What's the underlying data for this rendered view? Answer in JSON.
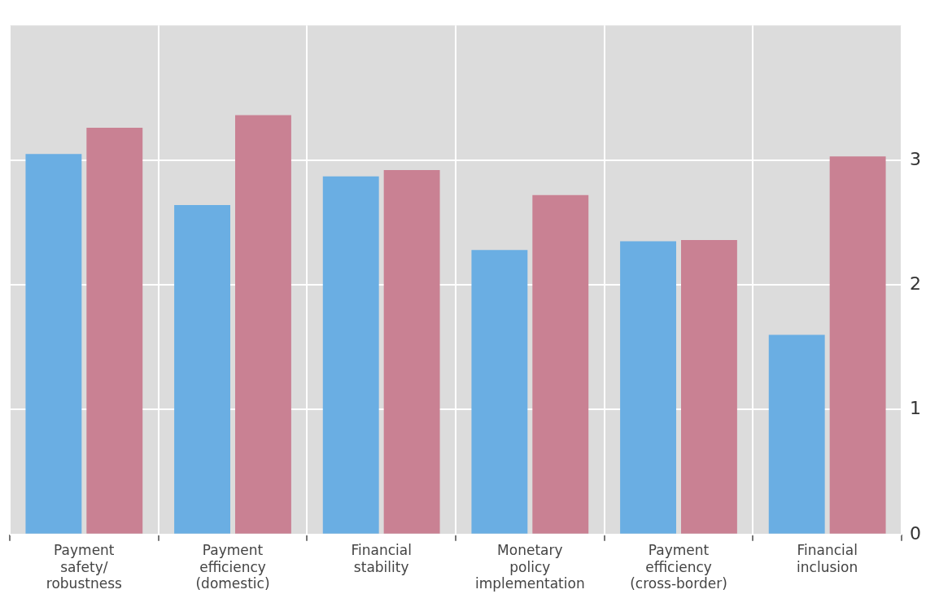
{
  "chart_data": {
    "type": "bar",
    "categories": [
      "Payment safety/ robustness",
      "Payment efficiency (domestic)",
      "Financial stability",
      "Monetary policy implementation",
      "Payment efficiency (cross-border)",
      "Financial inclusion"
    ],
    "series": [
      {
        "color": "#6aaee3",
        "values": [
          3.05,
          2.64,
          2.87,
          2.28,
          2.35,
          1.6
        ]
      },
      {
        "color": "#c98193",
        "values": [
          3.26,
          3.36,
          2.92,
          2.72,
          2.36,
          3.03
        ]
      }
    ],
    "ylim": [
      0,
      4.08
    ],
    "yticks": [
      0,
      1,
      2,
      3
    ],
    "grid": true,
    "legend": false
  }
}
